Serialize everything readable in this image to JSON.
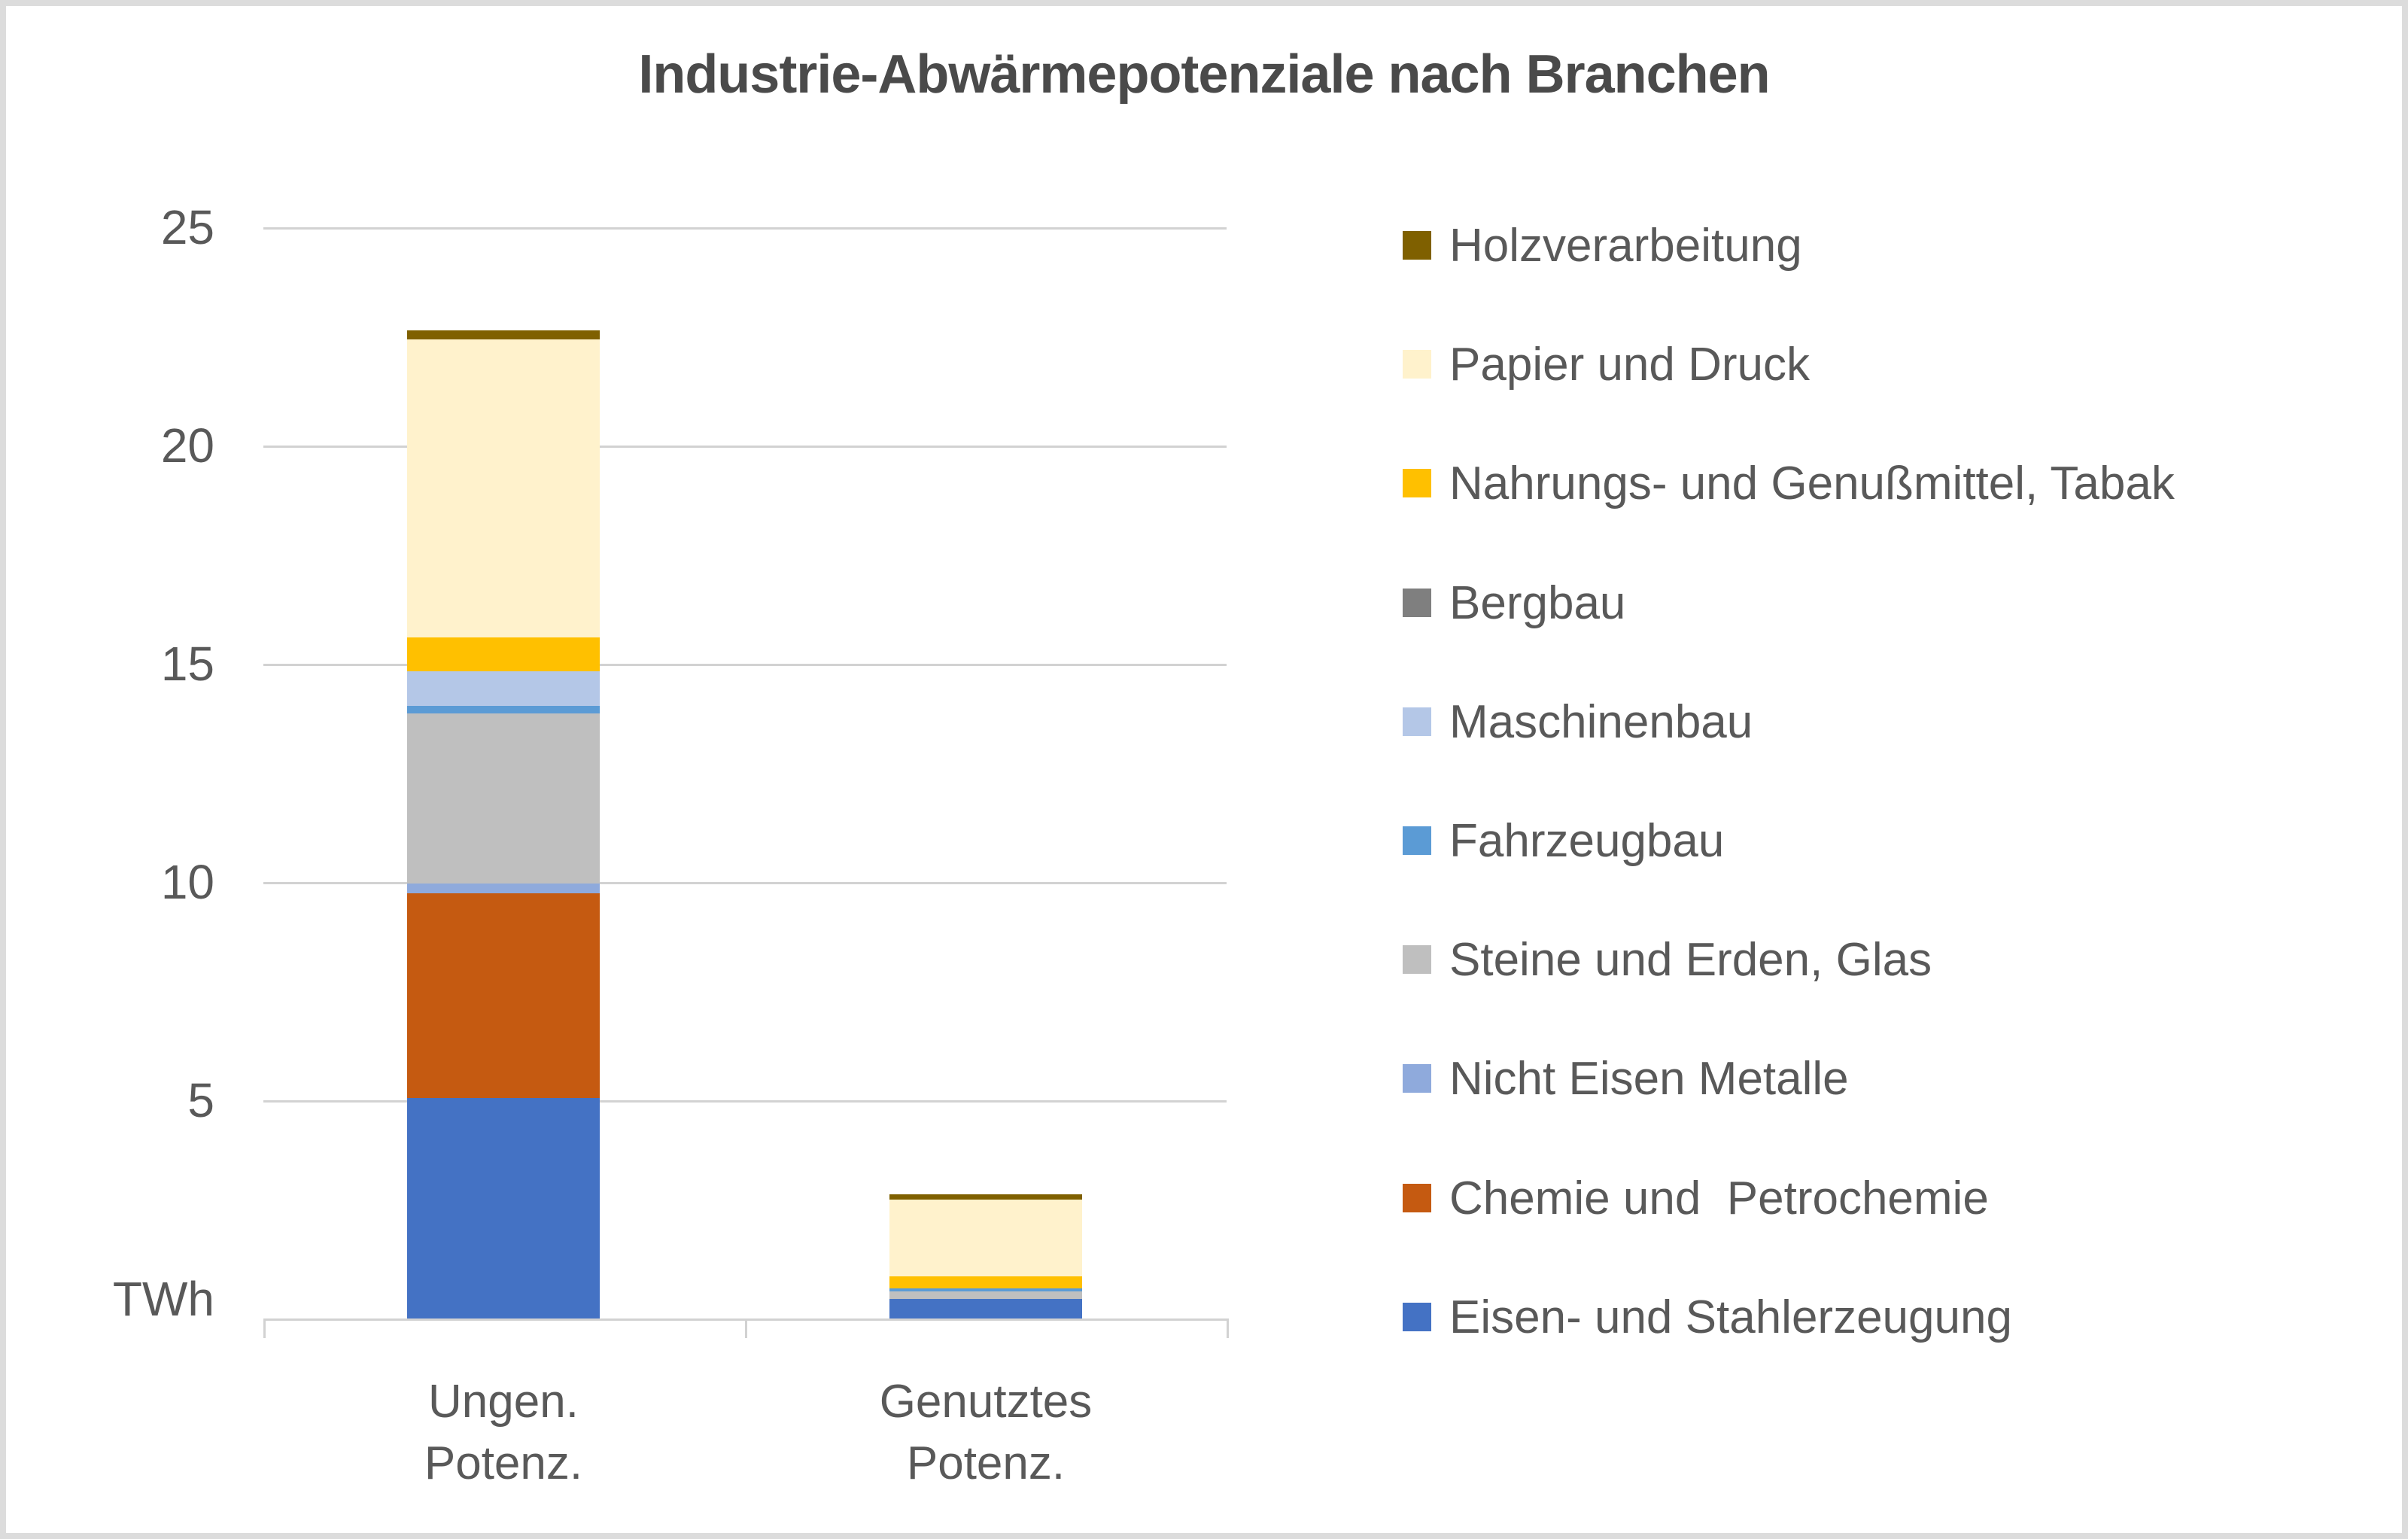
{
  "title": "Industrie-Abwärmepotenziale nach Branchen",
  "y_axis": {
    "unit_label": "TWh",
    "tick_labels": [
      "25",
      "20",
      "15",
      "10",
      "5"
    ],
    "gridline_values": [
      25,
      20,
      15,
      10,
      5
    ],
    "range": [
      0,
      25
    ]
  },
  "x_axis": {
    "category_lines": [
      [
        "Ungen.",
        "Potenz."
      ],
      [
        "Genutztes",
        "Potenz."
      ]
    ]
  },
  "chart_data": {
    "type": "bar",
    "stacked": true,
    "orientation": "vertical",
    "title": "Industrie-Abwärmepotenziale nach Branchen",
    "ylabel": "TWh",
    "ylim": [
      0,
      25
    ],
    "grid": true,
    "legend_position": "right",
    "legend_order": "reverse-of-stack (top of bar listed first)",
    "categories": [
      "Ungen. Potenz.",
      "Genutztes Potenz."
    ],
    "series": [
      {
        "name": "Eisen- und Stahlerzeugung",
        "color": "#4472C4",
        "values": [
          5.05,
          0.45
        ]
      },
      {
        "name": "Chemie und  Petrochemie",
        "color": "#C55A11",
        "values": [
          4.7,
          0.0
        ]
      },
      {
        "name": "Nicht Eisen Metalle",
        "color": "#8FAADC",
        "values": [
          0.22,
          0.0
        ]
      },
      {
        "name": "Steine und Erden, Glas",
        "color": "#BFBFBF",
        "values": [
          3.9,
          0.17
        ]
      },
      {
        "name": "Fahrzeugbau",
        "color": "#5B9BD5",
        "values": [
          0.17,
          0.07
        ]
      },
      {
        "name": "Maschinenbau",
        "color": "#B4C7E7",
        "values": [
          0.79,
          0.0
        ]
      },
      {
        "name": "Bergbau",
        "color": "#7F7F7F",
        "values": [
          0.0,
          0.0
        ]
      },
      {
        "name": "Nahrungs- und Genußmittel, Tabak",
        "color": "#FFC000",
        "values": [
          0.77,
          0.27
        ]
      },
      {
        "name": "Papier und Druck",
        "color": "#FFF2CC",
        "values": [
          6.83,
          1.76
        ]
      },
      {
        "name": "Holzverarbeitung",
        "color": "#7F6000",
        "values": [
          0.21,
          0.12
        ]
      }
    ],
    "totals": [
      22.64,
      2.84
    ]
  },
  "colors": {
    "grid": "#D2D2D2",
    "axis_text": "#595959",
    "title_text": "#4A4A4A",
    "frame_border": "#DCDCDC",
    "background": "#FFFFFF"
  }
}
